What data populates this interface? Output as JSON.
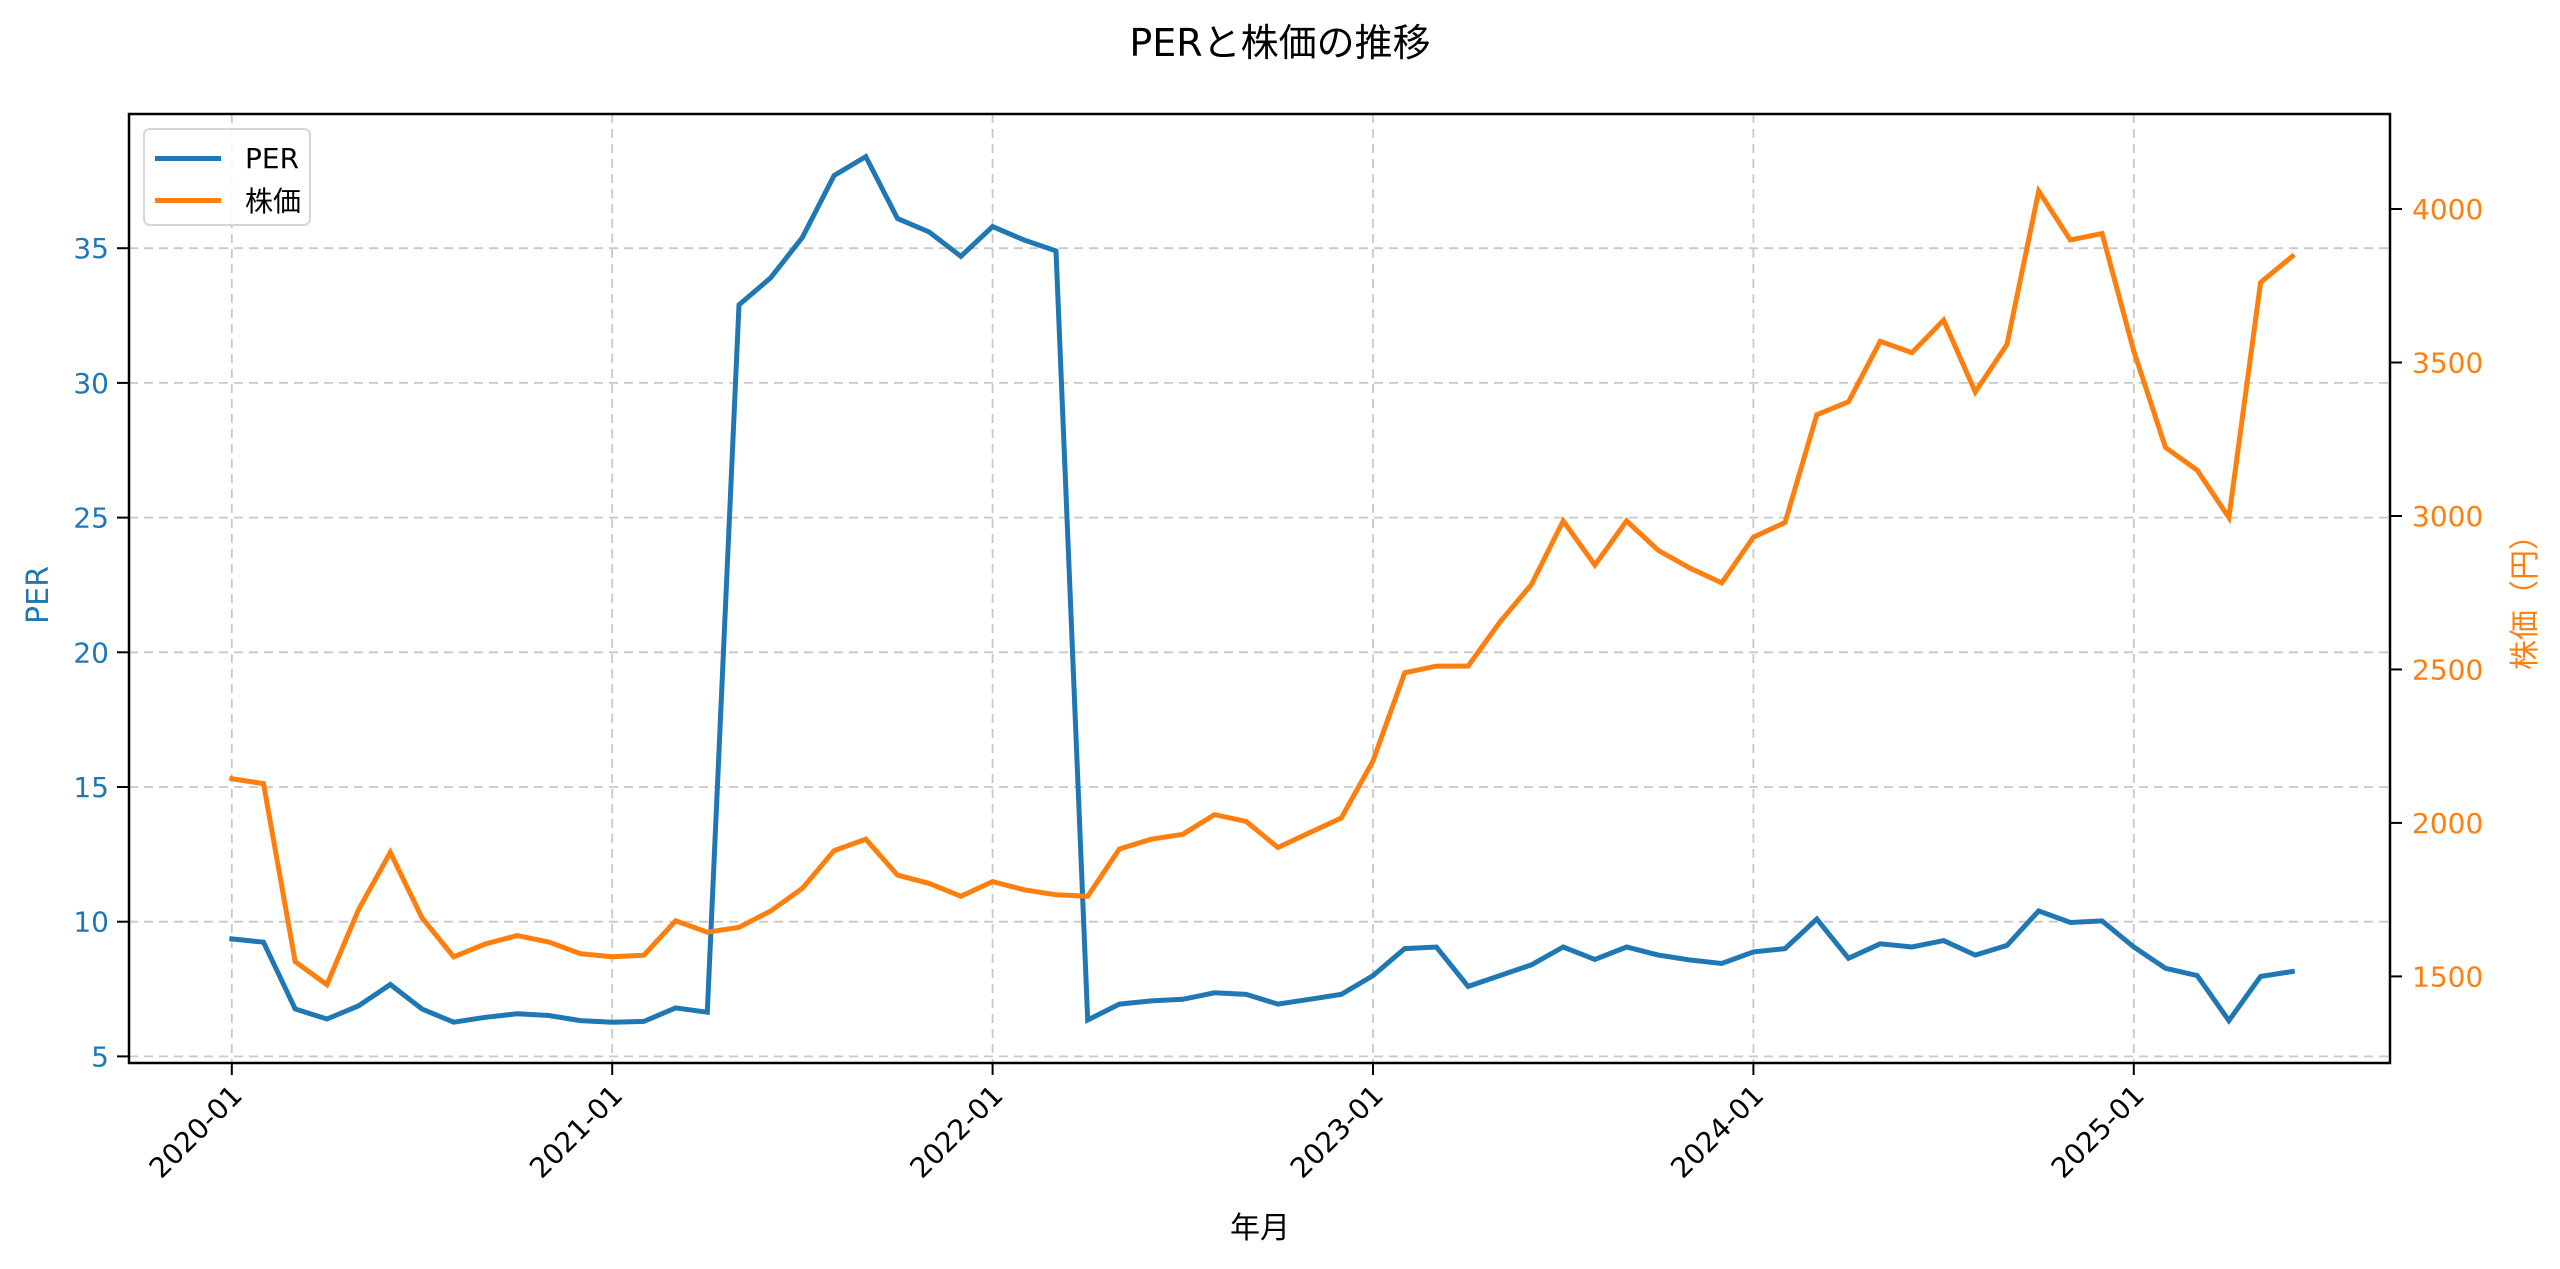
{
  "chart_data": {
    "type": "line",
    "title": "PERと株価の推移",
    "xlabel": "年月",
    "ylabel_left": "PER",
    "ylabel_right": "株価（円）",
    "x_start": "2020-01",
    "x_ticks": [
      "2020-01",
      "2021-01",
      "2022-01",
      "2023-01",
      "2024-01",
      "2025-01"
    ],
    "x_tick_index": [
      0,
      12,
      24,
      36,
      48,
      60
    ],
    "y_left_ticks": [
      5,
      10,
      15,
      20,
      25,
      30,
      35
    ],
    "y_right_ticks": [
      1500,
      2000,
      2500,
      3000,
      3500,
      4000
    ],
    "ylim_left": [
      4.6,
      40.3
    ],
    "ylim_right": [
      1220,
      4320
    ],
    "grid": true,
    "legend_position": "upper left",
    "x": [
      "2020-01",
      "2020-02",
      "2020-03",
      "2020-04",
      "2020-05",
      "2020-06",
      "2020-07",
      "2020-08",
      "2020-09",
      "2020-10",
      "2020-11",
      "2020-12",
      "2021-01",
      "2021-02",
      "2021-03",
      "2021-04",
      "2021-05",
      "2021-06",
      "2021-07",
      "2021-08",
      "2021-09",
      "2021-10",
      "2021-11",
      "2021-12",
      "2022-01",
      "2022-02",
      "2022-03",
      "2022-04",
      "2022-05",
      "2022-06",
      "2022-07",
      "2022-08",
      "2022-09",
      "2022-10",
      "2022-11",
      "2022-12",
      "2023-01",
      "2023-02",
      "2023-03",
      "2023-04",
      "2023-05",
      "2023-06",
      "2023-07",
      "2023-08",
      "2023-09",
      "2023-10",
      "2023-11",
      "2023-12",
      "2024-01",
      "2024-02",
      "2024-03",
      "2024-04",
      "2024-05",
      "2024-06",
      "2024-07",
      "2024-08",
      "2024-09",
      "2024-10",
      "2024-11",
      "2024-12",
      "2025-01",
      "2025-02",
      "2025-03",
      "2025-04",
      "2025-05",
      "2025-06"
    ],
    "series": [
      {
        "name": "PER",
        "axis": "left",
        "color": "#1f77b4",
        "values": [
          9.36,
          9.24,
          6.76,
          6.39,
          6.88,
          7.67,
          6.76,
          6.27,
          6.45,
          6.58,
          6.52,
          6.33,
          6.27,
          6.3,
          6.8,
          6.64,
          32.9,
          33.9,
          35.4,
          37.7,
          38.4,
          36.1,
          35.6,
          34.7,
          35.8,
          35.3,
          34.9,
          6.35,
          6.94,
          7.06,
          7.12,
          7.36,
          7.3,
          6.94,
          7.12,
          7.3,
          8.0,
          9.0,
          9.06,
          7.6,
          8.0,
          8.4,
          9.06,
          8.6,
          9.06,
          8.76,
          8.58,
          8.45,
          8.88,
          9.0,
          10.1,
          8.64,
          9.18,
          9.06,
          9.3,
          8.76,
          9.12,
          10.4,
          9.97,
          10.03,
          9.06,
          8.27,
          8.0,
          6.33,
          7.97,
          8.15
        ]
      },
      {
        "name": "株価",
        "axis": "right",
        "color": "#ff7f0e",
        "values": [
          2144,
          2128,
          1548,
          1473,
          1718,
          1904,
          1691,
          1564,
          1606,
          1633,
          1612,
          1574,
          1564,
          1569,
          1681,
          1644,
          1660,
          1713,
          1787,
          1910,
          1947,
          1830,
          1803,
          1761,
          1809,
          1782,
          1766,
          1761,
          1915,
          1947,
          1963,
          2027,
          2005,
          1920,
          1968,
          2016,
          2202,
          2489,
          2511,
          2511,
          2654,
          2777,
          2984,
          2840,
          2984,
          2888,
          2830,
          2782,
          2931,
          2979,
          3330,
          3372,
          3569,
          3532,
          3638,
          3404,
          3559,
          4058,
          3899,
          3920,
          3537,
          3223,
          3149,
          2995,
          3761,
          3846
        ]
      }
    ]
  },
  "legend": {
    "items": [
      {
        "label": "PER",
        "color": "#1f77b4"
      },
      {
        "label": "株価",
        "color": "#ff7f0e"
      }
    ]
  }
}
